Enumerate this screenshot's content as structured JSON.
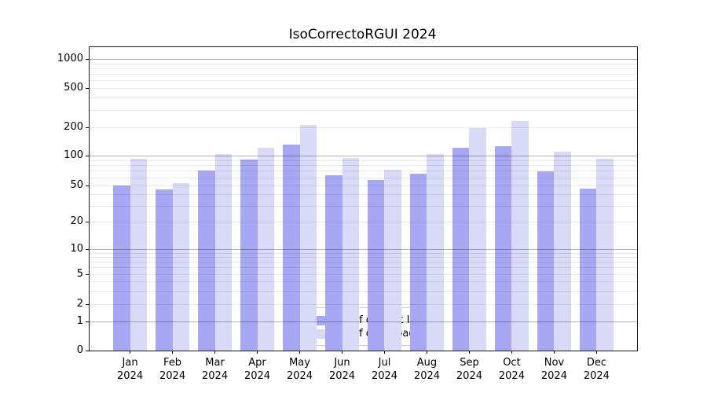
{
  "title": "IsoCorrectoRGUI 2024",
  "chart_data": {
    "type": "bar",
    "title": "IsoCorrectoRGUI 2024",
    "categories": [
      "Jan",
      "Feb",
      "Mar",
      "Apr",
      "May",
      "Jun",
      "Jul",
      "Aug",
      "Sep",
      "Oct",
      "Nov",
      "Dec"
    ],
    "category_year": "2024",
    "series": [
      {
        "name": "Nb of distinct IPs",
        "color": "#a7a7f3",
        "values": [
          50,
          45,
          70,
          91,
          131,
          63,
          57,
          66,
          120,
          126,
          69,
          46
        ]
      },
      {
        "name": "Nb of downloads",
        "color": "#d9d9f8",
        "values": [
          92,
          53,
          104,
          121,
          212,
          94,
          72,
          104,
          196,
          232,
          109,
          93
        ]
      }
    ],
    "xlabel": "",
    "ylabel": "",
    "yscale": "symlog",
    "y_ticks": [
      0,
      1,
      2,
      5,
      10,
      20,
      50,
      100,
      200,
      500,
      1000
    ],
    "ylim": [
      0,
      1200
    ],
    "grid": true,
    "legend_position": "lower center",
    "grid_major_color": "#b0b0b0",
    "grid_minor_color": "#e8e8e8"
  },
  "legend": {
    "items": [
      {
        "label": "Nb of distinct IPs"
      },
      {
        "label": "Nb of downloads"
      }
    ]
  }
}
